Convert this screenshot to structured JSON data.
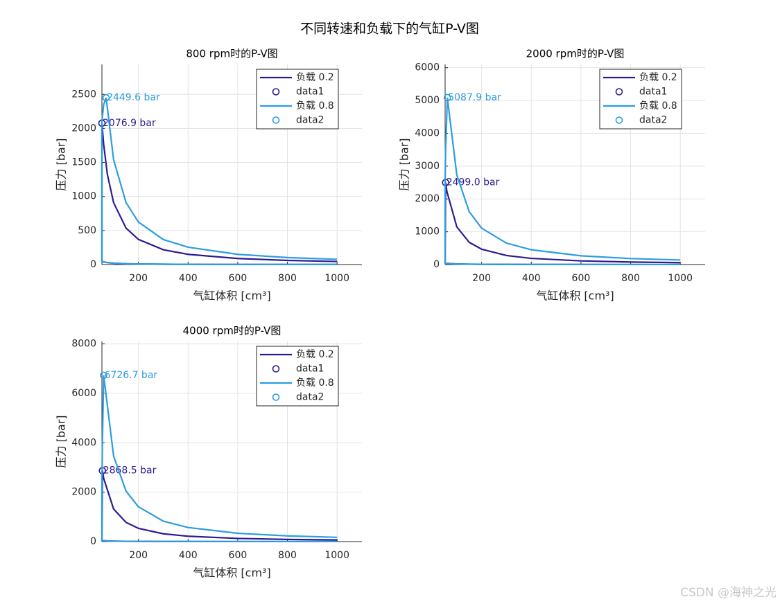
{
  "title": "不同转速和负载下的气缸P-V图",
  "watermark": "CSDN @海神之光",
  "chart_data": [
    {
      "type": "line",
      "title": "800 rpm时的P-V图",
      "x_label": "气缸体积 [cm³]",
      "y_label": "压力 [bar]",
      "xlim": [
        53,
        1100
      ],
      "ylim": [
        0,
        2940
      ],
      "xticks": [
        200,
        400,
        600,
        800,
        1000
      ],
      "yticks": [
        0,
        500,
        1000,
        1500,
        2000,
        2500
      ],
      "grid": true,
      "legend": "upper right",
      "series": [
        {
          "name": "负载 0.2",
          "color": "#2e1a8f",
          "x": [
            1000,
            800,
            600,
            400,
            300,
            200,
            150,
            100,
            75,
            60,
            53,
            53,
            60,
            75,
            100,
            150,
            200,
            300,
            400,
            600,
            800,
            1000
          ],
          "values": [
            1,
            1.34,
            1.94,
            3.29,
            4.78,
            8.1,
            11.8,
            20,
            29,
            38.6,
            45.5,
            2076.9,
            1768,
            1323,
            910,
            536,
            370,
            218,
            150,
            89,
            61,
            45
          ]
        },
        {
          "name": "data1",
          "color": "#2e1a8f",
          "marker": "o",
          "x": [
            53
          ],
          "values": [
            2076.9
          ],
          "value_labels": [
            "2076.9 bar"
          ]
        },
        {
          "name": "负载 0.8",
          "color": "#2b9de0",
          "x": [
            1000,
            800,
            600,
            400,
            300,
            200,
            150,
            100,
            75,
            60,
            53,
            53,
            60,
            70,
            100,
            150,
            200,
            300,
            400,
            600,
            800,
            1000
          ],
          "values": [
            1,
            1.34,
            1.94,
            3.29,
            4.78,
            8.1,
            11.8,
            20,
            29,
            38.6,
            45.5,
            2100,
            2350,
            2449.6,
            1541,
            911,
            625,
            368,
            255,
            150,
            103,
            77
          ]
        },
        {
          "name": "data2",
          "color": "#2b9de0",
          "marker": "o",
          "x": [
            70
          ],
          "values": [
            2449.6
          ],
          "value_labels": [
            "2449.6 bar"
          ]
        }
      ]
    },
    {
      "type": "line",
      "title": "2000 rpm时的P-V图",
      "x_label": "气缸体积 [cm³]",
      "y_label": "压力 [bar]",
      "xlim": [
        53,
        1100
      ],
      "ylim": [
        0,
        6100
      ],
      "xticks": [
        200,
        400,
        600,
        800,
        1000
      ],
      "yticks": [
        0,
        1000,
        2000,
        3000,
        4000,
        5000,
        6000
      ],
      "grid": true,
      "legend": "upper right",
      "series": [
        {
          "name": "负载 0.2",
          "color": "#2e1a8f",
          "x": [
            1000,
            800,
            600,
            400,
            300,
            200,
            150,
            100,
            75,
            60,
            53,
            55,
            60,
            100,
            150,
            200,
            300,
            400,
            600,
            800,
            1000
          ],
          "values": [
            1,
            1.34,
            1.94,
            3.29,
            4.78,
            8.1,
            11.8,
            20,
            29,
            38.6,
            45.5,
            2499.0,
            2232,
            1150,
            678,
            467,
            276,
            189,
            112,
            77,
            58
          ]
        },
        {
          "name": "data1",
          "color": "#2e1a8f",
          "marker": "o",
          "x": [
            55
          ],
          "values": [
            2499.0
          ],
          "value_labels": [
            "2499.0 bar"
          ]
        },
        {
          "name": "负载 0.8",
          "color": "#2b9de0",
          "x": [
            1000,
            800,
            600,
            400,
            300,
            200,
            150,
            100,
            75,
            60,
            53,
            53,
            55,
            62,
            100,
            150,
            200,
            300,
            400,
            600,
            800,
            1000
          ],
          "values": [
            1,
            1.34,
            1.94,
            3.29,
            4.78,
            8.1,
            11.8,
            20,
            29,
            38.6,
            45.5,
            2500,
            3500,
            5087.9,
            2732,
            1613,
            1109,
            654,
            451,
            266,
            183,
            138
          ]
        },
        {
          "name": "data2",
          "color": "#2b9de0",
          "marker": "o",
          "x": [
            62
          ],
          "values": [
            5087.9
          ],
          "value_labels": [
            "5087.9 bar"
          ]
        }
      ]
    },
    {
      "type": "line",
      "title": "4000 rpm时的P-V图",
      "x_label": "气缸体积 [cm³]",
      "y_label": "压力 [bar]",
      "xlim": [
        53,
        1100
      ],
      "ylim": [
        0,
        8100
      ],
      "xticks": [
        200,
        400,
        600,
        800,
        1000
      ],
      "yticks": [
        0,
        2000,
        4000,
        6000,
        8000
      ],
      "grid": true,
      "legend": "upper right",
      "series": [
        {
          "name": "负载 0.2",
          "color": "#2e1a8f",
          "x": [
            1000,
            800,
            600,
            400,
            300,
            200,
            150,
            100,
            75,
            60,
            53,
            55,
            60,
            100,
            150,
            200,
            300,
            400,
            600,
            800,
            1000
          ],
          "values": [
            1,
            1.34,
            1.94,
            3.29,
            4.78,
            8.1,
            11.8,
            20,
            29,
            38.6,
            45.5,
            2868.5,
            2562,
            1320,
            778,
            536,
            316,
            217,
            128,
            88,
            66
          ]
        },
        {
          "name": "data1",
          "color": "#2e1a8f",
          "marker": "o",
          "x": [
            55
          ],
          "values": [
            2868.5
          ],
          "value_labels": [
            "2868.5 bar"
          ]
        },
        {
          "name": "负载 0.8",
          "color": "#2b9de0",
          "x": [
            1000,
            800,
            600,
            400,
            300,
            200,
            150,
            100,
            75,
            60,
            53,
            53,
            55,
            60,
            100,
            150,
            200,
            300,
            400,
            600,
            800,
            1000
          ],
          "values": [
            1,
            1.34,
            1.94,
            3.29,
            4.78,
            8.1,
            11.8,
            20,
            29,
            38.6,
            45.5,
            2200,
            4000,
            6726.7,
            3464,
            2045,
            1406,
            827,
            570,
            337,
            231,
            174
          ]
        },
        {
          "name": "data2",
          "color": "#2b9de0",
          "marker": "o",
          "x": [
            60
          ],
          "values": [
            6726.7
          ],
          "value_labels": [
            "6726.7 bar"
          ]
        }
      ]
    }
  ]
}
